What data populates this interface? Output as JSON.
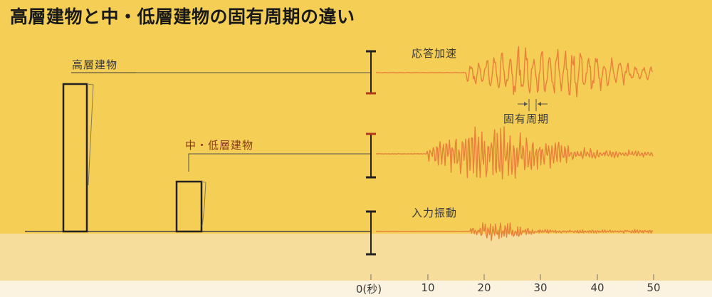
{
  "title": "高層建物と中・低層建物の固有周期の違い",
  "labels": {
    "tall_building": "高層建物",
    "mid_low_building": "中・低層建物",
    "response_acceleration": "応答加速",
    "natural_period": "固有周期",
    "input_vibration": "入力振動"
  },
  "colors": {
    "background": "#f4ce55",
    "ground_band": "#f6dd9b",
    "bottom_band": "#fbf3e0",
    "waveform": "#e8803a",
    "label_dark": "#3a3a3a",
    "label_brown": "#8a3a1a",
    "tick_red": "#b23a1a"
  },
  "time_axis": {
    "unit": "秒",
    "ticks": [
      "0(秒)",
      "10",
      "20",
      "30",
      "40",
      "50"
    ],
    "range": [
      0,
      50
    ]
  }
}
